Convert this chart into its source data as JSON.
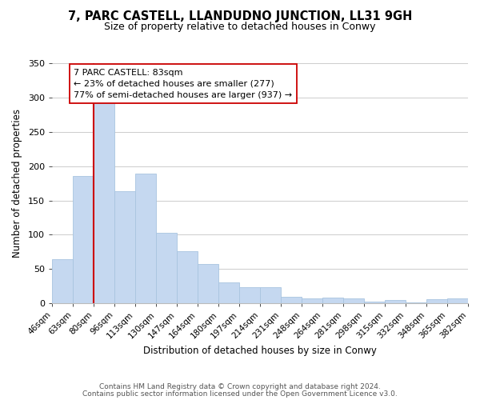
{
  "title": "7, PARC CASTELL, LLANDUDNO JUNCTION, LL31 9GH",
  "subtitle": "Size of property relative to detached houses in Conwy",
  "xlabel": "Distribution of detached houses by size in Conwy",
  "ylabel": "Number of detached properties",
  "bar_values": [
    64,
    186,
    295,
    163,
    189,
    103,
    76,
    57,
    30,
    24,
    23,
    10,
    7,
    8,
    7,
    2,
    5,
    1,
    6,
    7
  ],
  "tick_labels": [
    "46sqm",
    "63sqm",
    "80sqm",
    "96sqm",
    "113sqm",
    "130sqm",
    "147sqm",
    "164sqm",
    "180sqm",
    "197sqm",
    "214sqm",
    "231sqm",
    "248sqm",
    "264sqm",
    "281sqm",
    "298sqm",
    "315sqm",
    "332sqm",
    "348sqm",
    "365sqm",
    "382sqm"
  ],
  "bar_color": "#c5d8f0",
  "bar_edge_color": "#a8c4e0",
  "vline_color": "#cc0000",
  "vline_x_index": 2,
  "annotation_text": "7 PARC CASTELL: 83sqm\n← 23% of detached houses are smaller (277)\n77% of semi-detached houses are larger (937) →",
  "annotation_box_color": "#ffffff",
  "annotation_box_edge": "#cc0000",
  "ylim": [
    0,
    350
  ],
  "yticks": [
    0,
    50,
    100,
    150,
    200,
    250,
    300,
    350
  ],
  "footer_line1": "Contains HM Land Registry data © Crown copyright and database right 2024.",
  "footer_line2": "Contains public sector information licensed under the Open Government Licence v3.0.",
  "background_color": "#ffffff",
  "grid_color": "#cccccc",
  "title_fontsize": 10.5,
  "subtitle_fontsize": 9,
  "axis_label_fontsize": 8.5,
  "tick_fontsize": 7.5,
  "annotation_fontsize": 8,
  "footer_fontsize": 6.5
}
